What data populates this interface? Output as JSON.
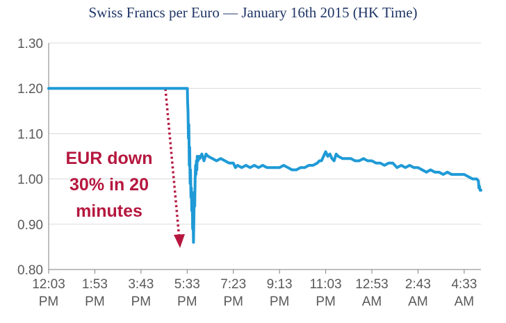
{
  "chart_data": {
    "type": "line",
    "title": "Swiss Francs per Euro — January 16th 2015 (HK Time)",
    "xlabel": "",
    "ylabel": "",
    "ylim": [
      0.8,
      1.3
    ],
    "yticks": [
      "0.80",
      "0.90",
      "1.00",
      "1.10",
      "1.20",
      "1.30"
    ],
    "xticks": [
      [
        "12:03",
        "PM"
      ],
      [
        "1:53",
        "PM"
      ],
      [
        "3:43",
        "PM"
      ],
      [
        "5:33",
        "PM"
      ],
      [
        "7:23",
        "PM"
      ],
      [
        "9:13",
        "PM"
      ],
      [
        "11:03",
        "PM"
      ],
      [
        "12:53",
        "AM"
      ],
      [
        "2:43",
        "AM"
      ],
      [
        "4:33",
        "AM"
      ]
    ],
    "x_minutes_per_tick": 110,
    "x_max_minutes": 1030,
    "grid": true,
    "series": [
      {
        "color": "#1f9ad6",
        "points": [
          [
            0,
            1.2
          ],
          [
            10,
            1.2
          ],
          [
            60,
            1.2
          ],
          [
            120,
            1.2
          ],
          [
            200,
            1.2
          ],
          [
            280,
            1.2
          ],
          [
            325,
            1.2
          ],
          [
            330,
            1.2
          ],
          [
            330.5,
            1.2
          ],
          [
            331,
            1.17
          ],
          [
            332,
            1.15
          ],
          [
            333,
            1.09
          ],
          [
            334,
            1.12
          ],
          [
            335,
            1.03
          ],
          [
            336,
            1.07
          ],
          [
            337,
            0.99
          ],
          [
            338,
            1.02
          ],
          [
            339,
            0.96
          ],
          [
            340,
            0.98
          ],
          [
            341,
            0.93
          ],
          [
            342,
            0.97
          ],
          [
            343,
            0.89
          ],
          [
            344,
            0.93
          ],
          [
            345,
            0.86
          ],
          [
            346,
            0.91
          ],
          [
            347,
            0.97
          ],
          [
            348,
            0.94
          ],
          [
            349,
            1.0
          ],
          [
            350,
            1.03
          ],
          [
            351,
            1.01
          ],
          [
            352,
            1.04
          ],
          [
            353,
            1.02
          ],
          [
            354,
            1.05
          ],
          [
            356,
            1.04
          ],
          [
            358,
            1.05
          ],
          [
            360,
            1.045
          ],
          [
            365,
            1.055
          ],
          [
            370,
            1.04
          ],
          [
            375,
            1.055
          ],
          [
            380,
            1.05
          ],
          [
            390,
            1.045
          ],
          [
            400,
            1.04
          ],
          [
            410,
            1.045
          ],
          [
            420,
            1.04
          ],
          [
            430,
            1.035
          ],
          [
            440,
            1.035
          ],
          [
            445,
            1.025
          ],
          [
            450,
            1.03
          ],
          [
            460,
            1.025
          ],
          [
            470,
            1.03
          ],
          [
            480,
            1.025
          ],
          [
            490,
            1.03
          ],
          [
            500,
            1.025
          ],
          [
            510,
            1.03
          ],
          [
            520,
            1.025
          ],
          [
            530,
            1.025
          ],
          [
            540,
            1.025
          ],
          [
            550,
            1.025
          ],
          [
            560,
            1.03
          ],
          [
            570,
            1.025
          ],
          [
            580,
            1.02
          ],
          [
            590,
            1.02
          ],
          [
            600,
            1.025
          ],
          [
            610,
            1.025
          ],
          [
            620,
            1.03
          ],
          [
            630,
            1.03
          ],
          [
            640,
            1.035
          ],
          [
            645,
            1.04
          ],
          [
            650,
            1.04
          ],
          [
            655,
            1.05
          ],
          [
            660,
            1.06
          ],
          [
            665,
            1.05
          ],
          [
            670,
            1.055
          ],
          [
            675,
            1.045
          ],
          [
            680,
            1.04
          ],
          [
            685,
            1.055
          ],
          [
            690,
            1.05
          ],
          [
            700,
            1.045
          ],
          [
            710,
            1.045
          ],
          [
            720,
            1.045
          ],
          [
            730,
            1.04
          ],
          [
            740,
            1.04
          ],
          [
            750,
            1.045
          ],
          [
            760,
            1.04
          ],
          [
            770,
            1.04
          ],
          [
            780,
            1.035
          ],
          [
            790,
            1.035
          ],
          [
            800,
            1.03
          ],
          [
            810,
            1.035
          ],
          [
            820,
            1.035
          ],
          [
            830,
            1.025
          ],
          [
            840,
            1.03
          ],
          [
            850,
            1.025
          ],
          [
            860,
            1.03
          ],
          [
            870,
            1.025
          ],
          [
            880,
            1.025
          ],
          [
            890,
            1.02
          ],
          [
            900,
            1.015
          ],
          [
            910,
            1.02
          ],
          [
            920,
            1.015
          ],
          [
            930,
            1.015
          ],
          [
            940,
            1.01
          ],
          [
            950,
            1.015
          ],
          [
            960,
            1.01
          ],
          [
            970,
            1.01
          ],
          [
            980,
            1.01
          ],
          [
            990,
            1.01
          ],
          [
            1000,
            1.005
          ],
          [
            1010,
            1.0
          ],
          [
            1020,
            1.0
          ],
          [
            1024,
            0.995
          ],
          [
            1025,
            0.98
          ],
          [
            1026,
            0.985
          ],
          [
            1028,
            0.975
          ],
          [
            1030,
            0.975
          ]
        ]
      }
    ],
    "annotation": {
      "lines": [
        "EUR down",
        "30% in 20",
        "minutes"
      ],
      "color": "#b5173e"
    }
  }
}
